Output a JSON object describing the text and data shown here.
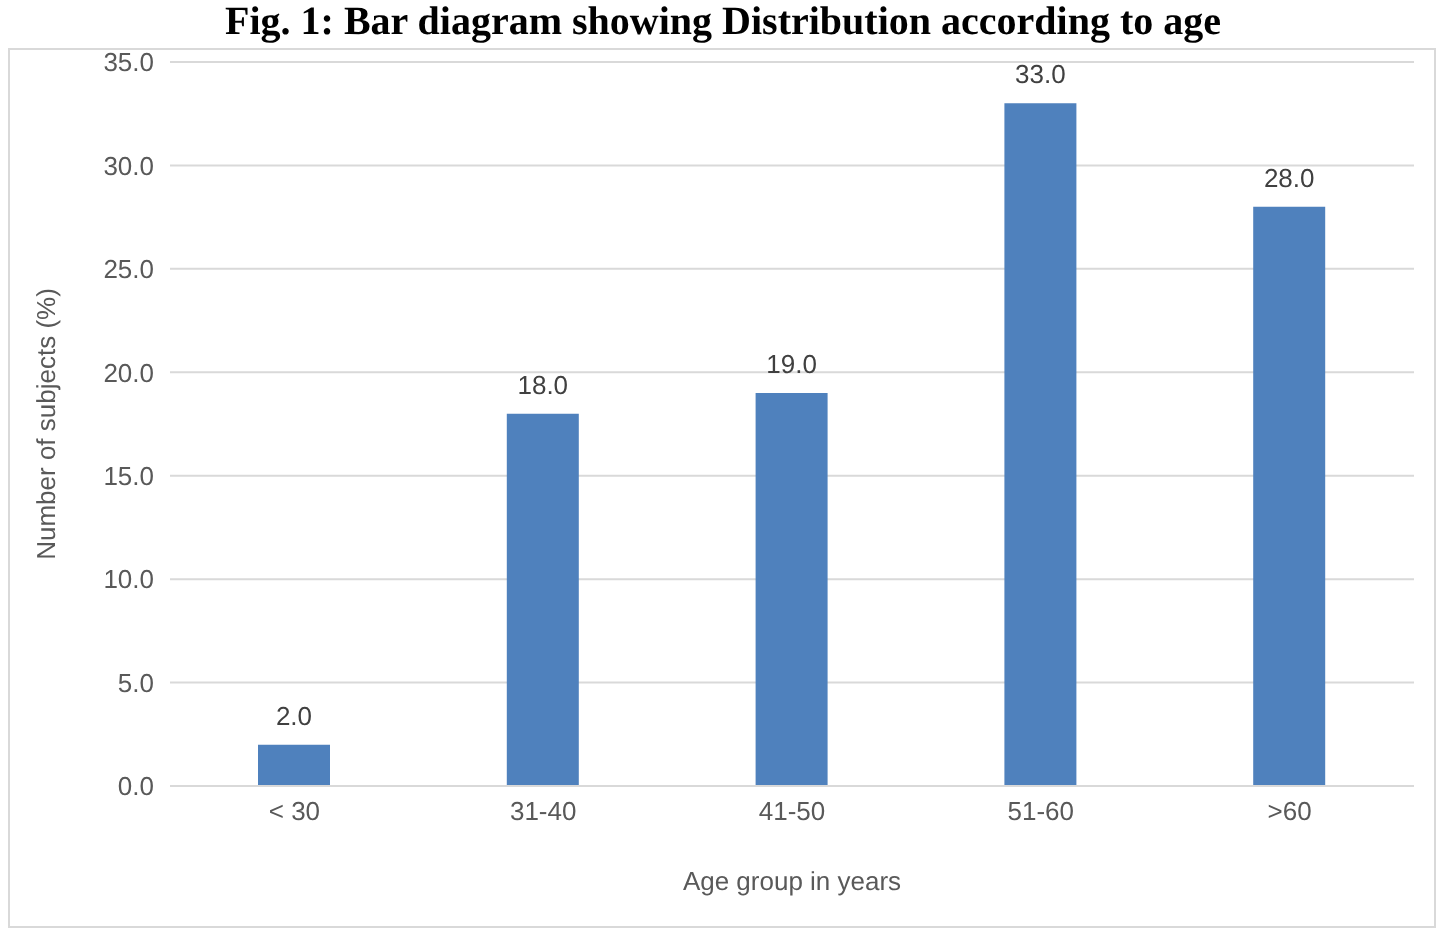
{
  "chart_data": {
    "type": "bar",
    "title": "Fig. 1: Bar diagram showing Distribution according to age",
    "xlabel": "Age group in years",
    "ylabel": "Number of subjects (%)",
    "categories": [
      "< 30",
      "31-40",
      "41-50",
      "51-60",
      ">60"
    ],
    "values": [
      2,
      18,
      19,
      33,
      28
    ],
    "value_labels": [
      "2.0",
      "18.0",
      "19.0",
      "33.0",
      "28.0"
    ],
    "color": "#4f81bd",
    "ylim": [
      0,
      35
    ],
    "yticks": [
      {
        "value": 0,
        "label": "0.0"
      },
      {
        "value": 5,
        "label": "5.0"
      },
      {
        "value": 10,
        "label": "10.0"
      },
      {
        "value": 15,
        "label": "15.0"
      },
      {
        "value": 20,
        "label": "20.0"
      },
      {
        "value": 25,
        "label": "25.0"
      },
      {
        "value": 30,
        "label": "30.0"
      },
      {
        "value": 35,
        "label": "35.0"
      }
    ],
    "grid": "y"
  }
}
